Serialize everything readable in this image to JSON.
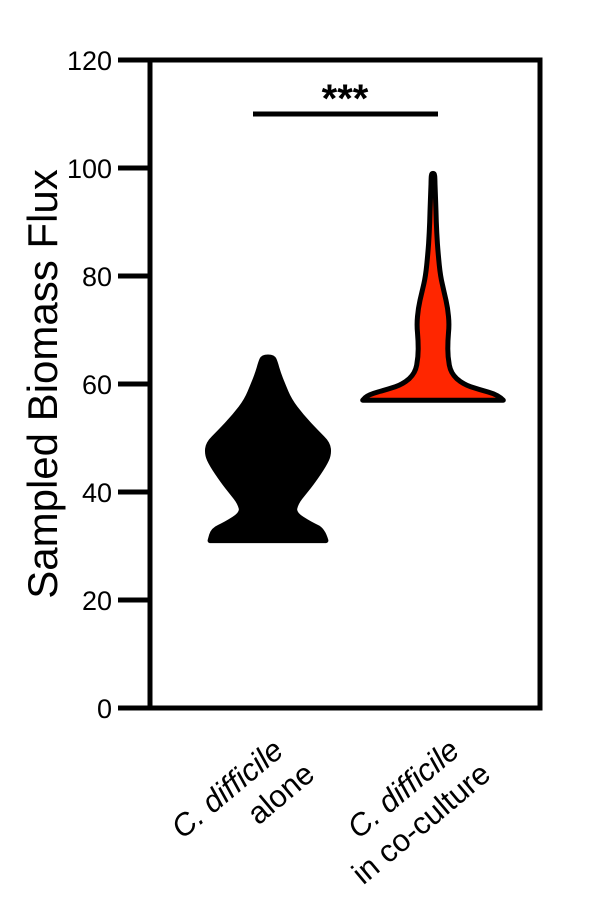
{
  "chart_data": {
    "type": "violin",
    "ylabel": "Sampled Biomass Flux",
    "ylim": [
      0,
      120
    ],
    "yticks": [
      "0",
      "20",
      "40",
      "60",
      "80",
      "100",
      "120"
    ],
    "grid": false,
    "legend": "none",
    "categories": [
      {
        "italic": "C. difficile",
        "rest": "alone"
      },
      {
        "italic": "C. difficile",
        "rest": "in co-culture"
      }
    ],
    "series": [
      {
        "color": "#000000",
        "min": 31,
        "max": 65,
        "profile": [
          [
            31,
            0.95
          ],
          [
            33,
            0.9
          ],
          [
            34,
            0.7
          ],
          [
            36,
            0.42
          ],
          [
            38,
            0.46
          ],
          [
            40,
            0.6
          ],
          [
            42,
            0.74
          ],
          [
            45,
            0.92
          ],
          [
            47,
            1.0
          ],
          [
            49,
            0.98
          ],
          [
            51,
            0.8
          ],
          [
            54,
            0.55
          ],
          [
            57,
            0.35
          ],
          [
            60,
            0.24
          ],
          [
            62,
            0.17
          ],
          [
            64,
            0.12
          ],
          [
            65,
            0.08
          ]
        ]
      },
      {
        "color": "#ff2600",
        "min": 57,
        "max": 99,
        "profile": [
          [
            57,
            0.95
          ],
          [
            58,
            0.88
          ],
          [
            59,
            0.62
          ],
          [
            60,
            0.4
          ],
          [
            62,
            0.24
          ],
          [
            65,
            0.2
          ],
          [
            68,
            0.2
          ],
          [
            71,
            0.22
          ],
          [
            74,
            0.2
          ],
          [
            77,
            0.15
          ],
          [
            80,
            0.1
          ],
          [
            84,
            0.07
          ],
          [
            88,
            0.05
          ],
          [
            92,
            0.04
          ],
          [
            96,
            0.03
          ],
          [
            98,
            0.025
          ],
          [
            99,
            0.02
          ]
        ]
      }
    ],
    "annotation": {
      "text": "***",
      "bracket_y": 110
    }
  }
}
